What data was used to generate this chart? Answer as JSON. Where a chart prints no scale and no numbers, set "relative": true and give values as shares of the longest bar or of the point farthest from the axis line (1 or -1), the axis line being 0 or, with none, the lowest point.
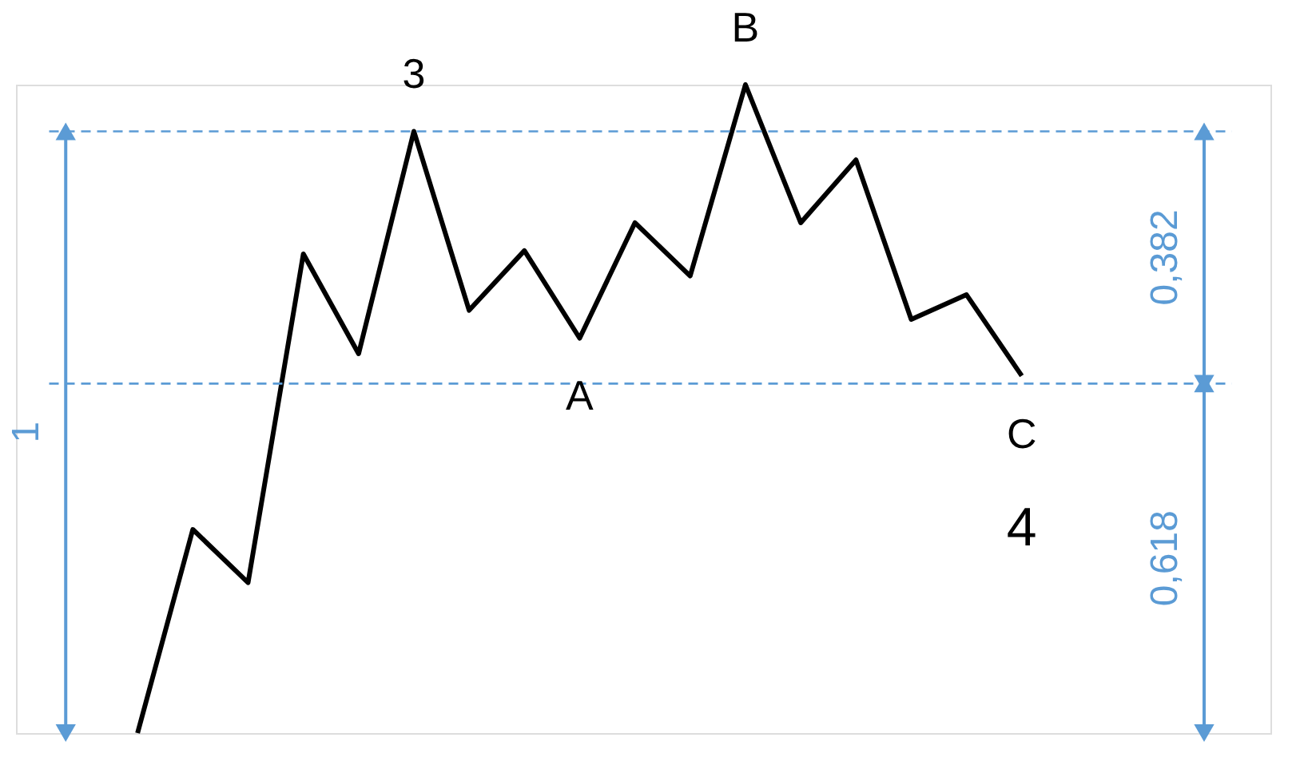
{
  "chart_data": {
    "type": "line",
    "relative": true,
    "categories": [
      null,
      null,
      null,
      null,
      null,
      null,
      null,
      null,
      null,
      null,
      null,
      null,
      null,
      null,
      null,
      null,
      null
    ],
    "series": [
      {
        "color": "#000000",
        "values": [
          0,
          0.314,
          0.232,
          0.739,
          0.585,
          0.928,
          0.652,
          0.744,
          0.609,
          0.787,
          0.705,
          1,
          0.787,
          0.884,
          0.638,
          0.676,
          0.551
        ]
      }
    ],
    "ref_lines": [
      {
        "axis": "y",
        "value": 0.928,
        "color": "#5b9bd5",
        "line_style": "dashed"
      },
      {
        "axis": "y",
        "value": 0.539,
        "color": "#5b9bd5",
        "line_style": "dashed"
      }
    ],
    "annotations": [
      {
        "text": "3",
        "y": 0.928
      },
      {
        "text": "A",
        "y": 0.609
      },
      {
        "text": "B",
        "y": 1
      },
      {
        "text": "C",
        "y": 0.551
      },
      {
        "text": "4",
        "y": 0.551
      },
      "1",
      "0,382",
      "0,618"
    ],
    "grid": false,
    "marker": "none",
    "line_style": "solid"
  }
}
